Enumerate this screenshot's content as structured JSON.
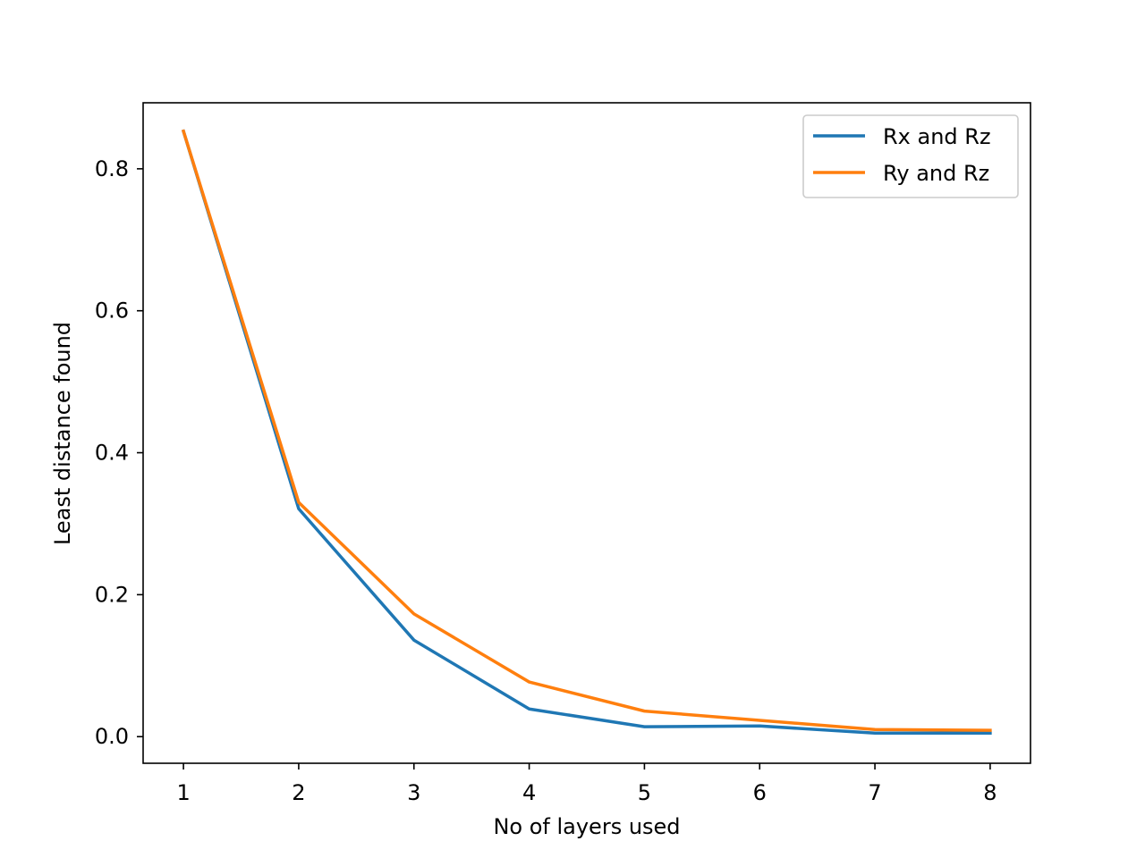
{
  "chart_data": {
    "type": "line",
    "title": "",
    "xlabel": "No of layers used",
    "ylabel": "Least distance found",
    "x": [
      1,
      2,
      3,
      4,
      5,
      6,
      7,
      8
    ],
    "xlim": [
      0.65,
      8.35
    ],
    "ylim": [
      -0.0375,
      0.893
    ],
    "xticks": [
      1,
      2,
      3,
      4,
      5,
      6,
      7,
      8
    ],
    "xtick_labels": [
      "1",
      "2",
      "3",
      "4",
      "5",
      "6",
      "7",
      "8"
    ],
    "yticks": [
      0.0,
      0.2,
      0.4,
      0.6,
      0.8
    ],
    "ytick_labels": [
      "0.0",
      "0.2",
      "0.4",
      "0.6",
      "0.8"
    ],
    "grid": false,
    "legend_position": "top-right",
    "series": [
      {
        "name": "Rx and Rz",
        "color": "#1f77b4",
        "values": [
          0.853,
          0.321,
          0.136,
          0.039,
          0.014,
          0.015,
          0.005,
          0.005
        ]
      },
      {
        "name": "Ry and Rz",
        "color": "#ff7f0e",
        "values": [
          0.853,
          0.33,
          0.173,
          0.077,
          0.036,
          0.023,
          0.01,
          0.009
        ]
      }
    ]
  }
}
